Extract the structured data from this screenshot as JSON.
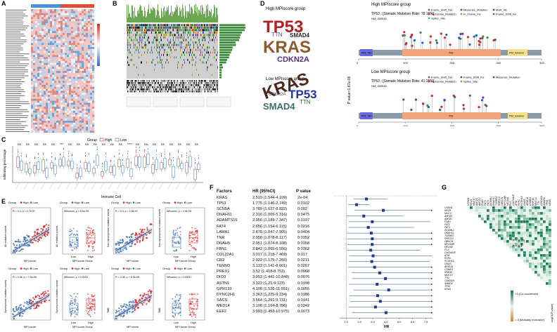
{
  "panels": {
    "a": "A",
    "b": "B",
    "c": "C",
    "d": "D",
    "e": "E",
    "f": "F",
    "g": "G"
  },
  "panel_c": {
    "legend_title": "Group",
    "legend_high": "High",
    "legend_low": "Low",
    "ylabel": "Infiltrating percentage",
    "xlabel": "Immune Cell",
    "sig_labels": [
      "ns",
      "ns",
      "ns",
      "ns",
      "ns",
      "***",
      "ns",
      "ns",
      "ns",
      "ns",
      "ns",
      "ns",
      "ns",
      "****",
      "ns",
      "ns",
      "ns",
      "ns",
      "ns",
      "ns",
      "ns",
      "ns"
    ],
    "colors": {
      "high": "#d62728",
      "low": "#3a6fb0"
    }
  },
  "panel_d": {
    "high_title": "High MPIscore group",
    "low_title": "Low MPIscore group",
    "high_words": [
      "TP53",
      "KRAS",
      "SMAD4",
      "CDKN2A",
      "TTN"
    ],
    "low_words": [
      "TP53",
      "KRAS",
      "SMAD4",
      "CDKN2A",
      "TTN"
    ],
    "pvalue": "P value=1.87e-06",
    "lollipop_high": {
      "title": "High MPIscore group",
      "gene_line": "TP53 : [Somatic Mutation Rate: 78.16%]",
      "refseq": "NM_000546",
      "legend": [
        "Frame_Shift_Del",
        "Missense_Mutation",
        "Multi_Hit",
        "Nonsense_Mutation",
        "In_Frame_Ins",
        "Frame_Shift_Ins",
        "Splice_Site"
      ],
      "domains": [
        "P53_TAD",
        "P53",
        "P53_tetramer"
      ],
      "axis": [
        "0",
        "100",
        "200",
        "300",
        "393"
      ]
    },
    "lollipop_low": {
      "title": "Low MPIscore group",
      "gene_line": "TP53 : [Somatic Mutation Rate: 41.25%]",
      "refseq": "NM_000546",
      "legend": [
        "Frame_Shift_Del",
        "Frame_Shift_Ins",
        "Missense_Mutation",
        "Nonsense_Mutation",
        "Splice_Site"
      ],
      "domains": [
        "P53_TAD",
        "P53",
        "P53_tetramer"
      ],
      "axis": [
        "0",
        "100",
        "200",
        "300",
        "393"
      ]
    }
  },
  "panel_e": {
    "plots": [
      {
        "ylabel": "All mutation counts",
        "xlabel": "MPI score",
        "stat": "R = 0.4, p = 1.7e-07"
      },
      {
        "ylabel": "All mutation counts",
        "xlabel": "MPI score Group",
        "stat": "Wilcoxon, p = 5.2e-05"
      },
      {
        "ylabel": "Non-synonymous mutation counts",
        "xlabel": "MPI score",
        "stat": "R = 0.4, p = 2.5e-07"
      },
      {
        "ylabel": "Non-synonymous mutation counts",
        "xlabel": "MPI score Group",
        "stat": "Wilcoxon, p = 2.9e-05"
      },
      {
        "ylabel": "Synonymous mutation counts",
        "xlabel": "MPI score",
        "stat": "R = 0.38, p = 7.5e-06"
      },
      {
        "ylabel": "Synonymous mutation counts",
        "xlabel": "MPI score Group",
        "stat": "Wilcoxon, p = 0.0016"
      },
      {
        "ylabel": "TMB",
        "xlabel": "MPI score",
        "stat": "R = 0.38, p = 6.9e-06"
      },
      {
        "ylabel": "TMB",
        "xlabel": "MPI score Group",
        "stat": "Wilcoxon, p = 0.00017"
      }
    ],
    "group_label": "Group",
    "high": "High",
    "low": "Low",
    "box_x": [
      "Low",
      "High"
    ]
  },
  "chart_data": {
    "type": "forest",
    "title": "",
    "headers": [
      "Factors",
      "HR (95%CI)",
      "P value"
    ],
    "xlabel": "HR",
    "xticks": [
      "1.0",
      "2.0",
      "3.0",
      "4.0",
      "5.0",
      "6.0",
      "7.0"
    ],
    "xlim": [
      0.5,
      7.5
    ],
    "rows": [
      {
        "factor": "KRAS",
        "hr_text": "2.519 (1.544-4.109)",
        "p": "2e-04",
        "hr": 2.519,
        "lo": 1.544,
        "hi": 4.109
      },
      {
        "factor": "TP53",
        "hr_text": "1.775 (1.146-2.749)",
        "p": "0.0102",
        "hr": 1.775,
        "lo": 1.146,
        "hi": 2.749
      },
      {
        "factor": "SCN5A",
        "hr_text": "3.789 (1.627-8.822)",
        "p": "0.002",
        "hr": 3.789,
        "lo": 1.627,
        "hi": 8.822
      },
      {
        "factor": "DNAH11",
        "hr_text": "2.316 (1.009-5.316)",
        "p": "0.0475",
        "hr": 2.316,
        "lo": 1.009,
        "hi": 5.316
      },
      {
        "factor": "ADAMTS16",
        "hr_text": "2.956 (1.189-7.347)",
        "p": "0.0197",
        "hr": 2.956,
        "lo": 1.189,
        "hi": 7.347
      },
      {
        "factor": "FAT4",
        "hr_text": "2.656 (1.154-6.115)",
        "p": "0.0216",
        "hr": 2.656,
        "lo": 1.154,
        "hi": 6.115
      },
      {
        "factor": "LAMA1",
        "hr_text": "2.878 (1.047-7.905)",
        "p": "0.0404",
        "hr": 2.878,
        "lo": 1.047,
        "hi": 7.905
      },
      {
        "factor": "TNR",
        "hr_text": "2.958 (1.078-8.117)",
        "p": "0.0352",
        "hr": 2.958,
        "lo": 1.078,
        "hi": 8.117
      },
      {
        "factor": "DNAH5",
        "hr_text": "2.951 (1.074-8.108)",
        "p": "0.0358",
        "hr": 2.951,
        "lo": 1.074,
        "hi": 8.108
      },
      {
        "factor": "FBN1",
        "hr_text": "2.842 (1.065-6.556)",
        "p": "0.0362",
        "hr": 2.842,
        "lo": 1.065,
        "hi": 6.556
      },
      {
        "factor": "COL22A1",
        "hr_text": "3.017 (1.218-7.469)",
        "p": "0.017",
        "hr": 3.017,
        "lo": 1.218,
        "hi": 7.469
      },
      {
        "factor": "CR2",
        "hr_text": "2.922 (1.175-7.266)",
        "p": "0.0211",
        "hr": 2.922,
        "lo": 1.175,
        "hi": 7.266
      },
      {
        "factor": "TENM3",
        "hr_text": "3.133 (1.141-8.601)",
        "p": "0.0267",
        "hr": 3.133,
        "lo": 1.141,
        "hi": 8.601
      },
      {
        "factor": "PREX1",
        "hr_text": "3.52 (1.418-8.753)",
        "p": "0.0068",
        "hr": 3.52,
        "lo": 1.418,
        "hi": 8.753
      },
      {
        "factor": "DIO3",
        "hr_text": "3.953 (1.441-10.848)",
        "p": "0.0076",
        "hr": 3.953,
        "lo": 1.441,
        "hi": 10.848
      },
      {
        "factor": "ASTN1",
        "hr_text": "3.322 (1.21-9.123)",
        "p": "0.0198",
        "hr": 3.322,
        "lo": 1.21,
        "hi": 9.123
      },
      {
        "factor": "GPR133",
        "hr_text": "4.198 (1.526-11.551)",
        "p": "0.0055",
        "hr": 4.198,
        "lo": 1.526,
        "hi": 11.551
      },
      {
        "factor": "DYNC2H1",
        "hr_text": "3.363 (1.225-9.234)",
        "p": "0.0186",
        "hr": 3.363,
        "lo": 1.225,
        "hi": 9.234
      },
      {
        "factor": "SACS",
        "hr_text": "3.564 (1.291-9.731)",
        "p": "0.0141",
        "hr": 3.564,
        "lo": 1.291,
        "hi": 9.731
      },
      {
        "factor": "MED14",
        "hr_text": "3.198 (1.164-8.786)",
        "p": "0.0242",
        "hr": 3.198,
        "lo": 1.164,
        "hi": 8.786
      },
      {
        "factor": "EEF2",
        "hr_text": "3.993 (1.453-10.975)",
        "p": "0.0073",
        "hr": 3.993,
        "lo": 1.453,
        "hi": 10.975
      }
    ]
  },
  "panel_g": {
    "genes": [
      "USH2A",
      "RELN",
      "MUC4",
      "AMTZ0",
      "AMTZC",
      "FLAG",
      "FAT2",
      "FAT3",
      "DCDML1",
      "DNAH11",
      "TGFBR2",
      "RNF213",
      "OBSCN",
      "MYO18B",
      "HECW2",
      "FLG",
      "CACNA1E",
      "ATM",
      "RYR1",
      "PCDH15",
      "GNAS",
      "ARID1A",
      "CSMD3",
      "RNF43",
      "MUC16",
      "TTN",
      "CDKN2A",
      "SMAD4",
      "TP53",
      "KRAS"
    ],
    "legend_title": "-log10(P-value)",
    "legend_co": ">3 (Co-occurence)",
    "legend_me": "> 3 (Mutually exclusive)",
    "sig1": "* P < 0.05",
    "sig2": ". P < 0.1"
  }
}
